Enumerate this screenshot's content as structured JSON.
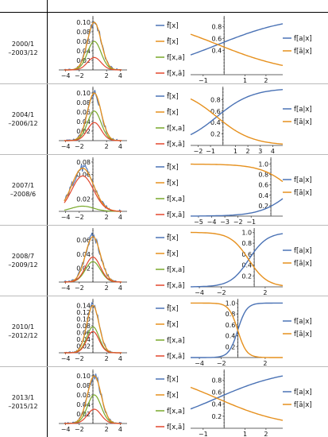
{
  "colors": {
    "blue": "#4a72b5",
    "orange": "#e6901d",
    "green": "#79a92a",
    "red": "#e2472d",
    "dash": "#222222"
  },
  "legend_left": [
    "f̄[x]",
    "f̂[x]",
    "f[x,a]",
    "f[x,ā]"
  ],
  "legend_right": [
    "f[a|x]",
    "f[ā|x]"
  ],
  "panels": [
    {
      "period": [
        "2000/1",
        "–2003/12"
      ],
      "left": {
        "xlim": [
          -5,
          5
        ],
        "ylim": [
          0,
          0.11
        ],
        "xticks": [
          -4,
          -2,
          2,
          4
        ],
        "yticks": [
          0.02,
          0.04,
          0.06,
          0.08,
          0.1
        ],
        "center": 0.2,
        "sigma": 1.0,
        "peak": 0.1,
        "noise": 0.012,
        "ga": 0.6,
        "gr": 0.26
      },
      "right": {
        "xlim": [
          -1.6,
          2.8
        ],
        "ylim": [
          0,
          0.95
        ],
        "xticks": [
          -1,
          1,
          2
        ],
        "yticks": [
          0.4,
          0.6,
          0.8
        ],
        "vline": 0,
        "x0": -0.3,
        "k": 0.55
      }
    },
    {
      "period": [
        "2004/1",
        "–2006/12"
      ],
      "left": {
        "xlim": [
          -5,
          5
        ],
        "ylim": [
          0,
          0.11
        ],
        "xticks": [
          -4,
          -2,
          2,
          4
        ],
        "yticks": [
          0.02,
          0.04,
          0.06,
          0.08,
          0.1
        ],
        "center": 0.2,
        "sigma": 1.0,
        "peak": 0.1,
        "noise": 0.012,
        "ga": 0.62,
        "gr": 0.38
      },
      "right": {
        "xlim": [
          -2.6,
          4.8
        ],
        "ylim": [
          0,
          1.0
        ],
        "xticks": [
          -2,
          -1,
          1,
          2,
          3,
          4
        ],
        "yticks": [
          0.2,
          0.4,
          0.6,
          0.8
        ],
        "vline": 0,
        "x0": -0.5,
        "k": 0.7
      }
    },
    {
      "period": [
        "2007/1",
        "–2008/6"
      ],
      "left": {
        "xlim": [
          -5,
          5
        ],
        "ylim": [
          0,
          0.085
        ],
        "xticks": [
          -4,
          -2,
          2,
          4
        ],
        "yticks": [
          0.02,
          0.06,
          0.08
        ],
        "center": -1.5,
        "sigma": 1.6,
        "peak": 0.07,
        "noise": 0.01,
        "ga": 0.12,
        "gr": 0.82
      },
      "right": {
        "xlim": [
          -5.6,
          1.4
        ],
        "ylim": [
          0,
          1.1
        ],
        "xticks": [
          -5,
          -4,
          -3,
          -2,
          -1
        ],
        "yticks": [
          0.2,
          0.4,
          0.6,
          0.8,
          1.0
        ],
        "vline": 0.5,
        "x0": 2.2,
        "k": 0.85
      }
    },
    {
      "period": [
        "2008/7",
        "–2009/12"
      ],
      "left": {
        "xlim": [
          -5,
          5
        ],
        "ylim": [
          0,
          0.075
        ],
        "xticks": [
          -4,
          -2,
          2,
          4
        ],
        "yticks": [
          0.02,
          0.04,
          0.06
        ],
        "center": 0.0,
        "sigma": 1.1,
        "peak": 0.065,
        "noise": 0.009,
        "ga": 0.45,
        "gr": 0.55
      },
      "right": {
        "xlim": [
          -4.8,
          3.6
        ],
        "ylim": [
          0,
          1.05
        ],
        "xticks": [
          -4,
          -2,
          2
        ],
        "yticks": [
          0.2,
          0.4,
          0.6,
          0.8,
          1.0
        ],
        "vline": 1.0,
        "x0": 0.5,
        "k": 1.2
      }
    },
    {
      "period": [
        "2010/1",
        "–2012/12"
      ],
      "left": {
        "xlim": [
          -5,
          5
        ],
        "ylim": [
          0,
          0.155
        ],
        "xticks": [
          -4,
          -2,
          2,
          4
        ],
        "yticks": [
          0.02,
          0.04,
          0.06,
          0.08,
          0.1,
          0.12,
          0.14
        ],
        "center": 0.0,
        "sigma": 0.9,
        "peak": 0.14,
        "noise": 0.015,
        "ga": 0.55,
        "gr": 0.45
      },
      "right": {
        "xlim": [
          -4.8,
          3.6
        ],
        "ylim": [
          0,
          1.05
        ],
        "xticks": [
          -4,
          -2,
          2
        ],
        "yticks": [
          0.2,
          0.4,
          0.6,
          0.8,
          1.0
        ],
        "vline": -0.5,
        "x0": -0.5,
        "k": 2.5
      }
    },
    {
      "period": [
        "2013/1",
        "–2015/12"
      ],
      "left": {
        "xlim": [
          -5,
          5
        ],
        "ylim": [
          0,
          0.11
        ],
        "xticks": [
          -4,
          -2,
          2,
          4
        ],
        "yticks": [
          0.02,
          0.04,
          0.06,
          0.08,
          0.1
        ],
        "center": 0.2,
        "sigma": 1.0,
        "peak": 0.1,
        "noise": 0.012,
        "ga": 0.6,
        "gr": 0.3
      },
      "right": {
        "xlim": [
          -1.6,
          2.8
        ],
        "ylim": [
          0,
          0.95
        ],
        "xticks": [
          -1,
          1,
          2
        ],
        "yticks": [
          0.2,
          0.4,
          0.6,
          0.8
        ],
        "vline": 0,
        "x0": -0.35,
        "k": 0.6
      }
    }
  ],
  "chart_data": [
    {
      "type": "line",
      "series": [
        {
          "name": "f̄[x]"
        },
        {
          "name": "f̂[x]"
        },
        {
          "name": "f[x,a]"
        },
        {
          "name": "f[x,ā]"
        },
        {
          "name": "f[a|x]"
        },
        {
          "name": "f[ā|x]"
        }
      ]
    }
  ]
}
